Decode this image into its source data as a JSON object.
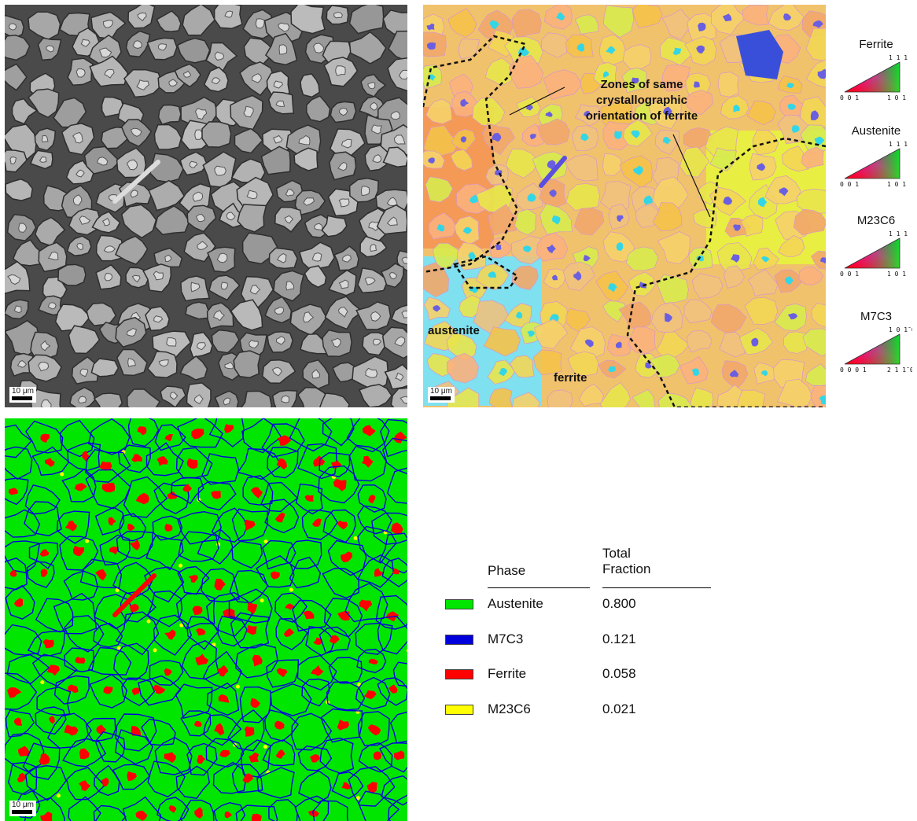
{
  "scale_bar": "10 μm",
  "annotations": {
    "zones": [
      "Zones of same",
      "crystallographic",
      "orientation of ferrite"
    ],
    "austenite": "austenite",
    "ferrite": "ferrite"
  },
  "ipf_keys": [
    {
      "title": "Ferrite",
      "labels": [
        "1 1 1",
        "0 0 1",
        "1 0 1"
      ]
    },
    {
      "title": "Austenite",
      "labels": [
        "1 1 1",
        "0 0 1",
        "1 0 1"
      ]
    },
    {
      "title": "M23C6",
      "labels": [
        "1 1 1",
        "0 0 1",
        "1 0 1"
      ]
    },
    {
      "title": "M7C3",
      "labels": [
        "1 0 1̄ 0",
        "0 0 0 1",
        "2 1 1̄ 0"
      ]
    }
  ],
  "phase_table": {
    "header_phase": "Phase",
    "header_total": [
      "Total",
      "Fraction"
    ],
    "rows": [
      {
        "name": "Austenite",
        "value": "0.800",
        "color": "#00e600"
      },
      {
        "name": "M7C3",
        "value": "0.121",
        "color": "#0000dd"
      },
      {
        "name": "Ferrite",
        "value": "0.058",
        "color": "#ff0000"
      },
      {
        "name": "M23C6",
        "value": "0.021",
        "color": "#ffff00"
      }
    ]
  },
  "colors": {
    "austenite": "#00e600",
    "m7c3": "#0000dd",
    "ferrite": "#ff0000",
    "m23c6": "#ffff00",
    "sem_matrix": "#a9a9a9",
    "sem_boundary": "#3a3a3a"
  }
}
